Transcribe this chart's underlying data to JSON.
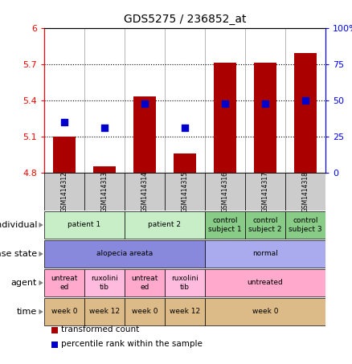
{
  "title": "GDS5275 / 236852_at",
  "samples": [
    "GSM1414312",
    "GSM1414313",
    "GSM1414314",
    "GSM1414315",
    "GSM1414316",
    "GSM1414317",
    "GSM1414318"
  ],
  "transformed_count": [
    5.1,
    4.855,
    5.43,
    4.96,
    5.71,
    5.715,
    5.79
  ],
  "percentile_rank": [
    35,
    31,
    48,
    31,
    48,
    48,
    50
  ],
  "bar_bottom": 4.8,
  "ylim_left": [
    4.8,
    6.0
  ],
  "ylim_right": [
    0,
    100
  ],
  "yticks_left": [
    4.8,
    5.1,
    5.4,
    5.7,
    6.0
  ],
  "yticks_right": [
    0,
    25,
    50,
    75,
    100
  ],
  "ytick_labels_left": [
    "4.8",
    "5.1",
    "5.4",
    "5.7",
    "6"
  ],
  "ytick_labels_right": [
    "0",
    "25",
    "50",
    "75",
    "100%"
  ],
  "hlines": [
    5.1,
    5.4,
    5.7
  ],
  "bar_color": "#aa0000",
  "dot_color": "#0000cc",
  "bar_width": 0.55,
  "dot_size": 28,
  "sample_bg": "#cccccc",
  "annotation_rows": [
    {
      "label": "individual",
      "groups": [
        {
          "cols": [
            0,
            1
          ],
          "text": "patient 1",
          "color": "#c8eec8"
        },
        {
          "cols": [
            2,
            3
          ],
          "text": "patient 2",
          "color": "#c8eec8"
        },
        {
          "cols": [
            4
          ],
          "text": "control\nsubject 1",
          "color": "#88cc88"
        },
        {
          "cols": [
            5
          ],
          "text": "control\nsubject 2",
          "color": "#88cc88"
        },
        {
          "cols": [
            6
          ],
          "text": "control\nsubject 3",
          "color": "#88cc88"
        }
      ]
    },
    {
      "label": "disease state",
      "groups": [
        {
          "cols": [
            0,
            1,
            2,
            3
          ],
          "text": "alopecia areata",
          "color": "#8888dd"
        },
        {
          "cols": [
            4,
            5,
            6
          ],
          "text": "normal",
          "color": "#aaaaee"
        }
      ]
    },
    {
      "label": "agent",
      "groups": [
        {
          "cols": [
            0
          ],
          "text": "untreat\ned",
          "color": "#ffaacc"
        },
        {
          "cols": [
            1
          ],
          "text": "ruxolini\ntib",
          "color": "#ffbbdd"
        },
        {
          "cols": [
            2
          ],
          "text": "untreat\ned",
          "color": "#ffaacc"
        },
        {
          "cols": [
            3
          ],
          "text": "ruxolini\ntib",
          "color": "#ffbbdd"
        },
        {
          "cols": [
            4,
            5,
            6
          ],
          "text": "untreated",
          "color": "#ffaacc"
        }
      ]
    },
    {
      "label": "time",
      "groups": [
        {
          "cols": [
            0
          ],
          "text": "week 0",
          "color": "#ddbb88"
        },
        {
          "cols": [
            1
          ],
          "text": "week 12",
          "color": "#ddbb88"
        },
        {
          "cols": [
            2
          ],
          "text": "week 0",
          "color": "#ddbb88"
        },
        {
          "cols": [
            3
          ],
          "text": "week 12",
          "color": "#ddbb88"
        },
        {
          "cols": [
            4,
            5,
            6
          ],
          "text": "week 0",
          "color": "#ddbb88"
        }
      ]
    }
  ],
  "legend_items": [
    {
      "color": "#aa0000",
      "label": "transformed count"
    },
    {
      "color": "#0000cc",
      "label": "percentile rank within the sample"
    }
  ]
}
